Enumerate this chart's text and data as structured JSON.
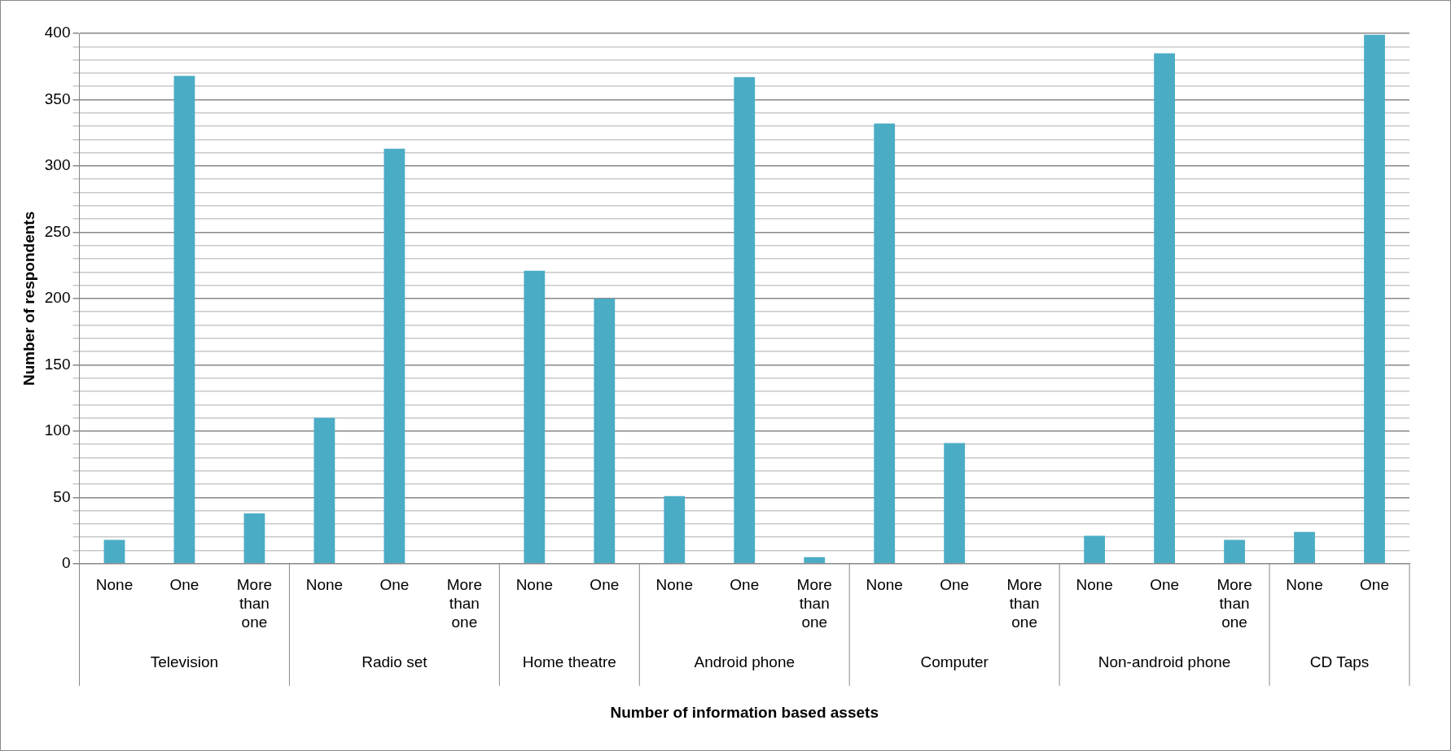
{
  "chart_data": {
    "type": "bar",
    "xlabel": "Number of information based assets",
    "ylabel": "Number of respondents",
    "categories": [
      "None",
      "One",
      "More than one",
      "None",
      "One",
      "More than one",
      "None",
      "One",
      "None",
      "One",
      "More than one",
      "None",
      "One",
      "More than one",
      "None",
      "One",
      "More than one",
      "None",
      "One"
    ],
    "annotations": [
      "Television",
      "Radio set",
      "Home theatre",
      "Android phone",
      "Computer",
      "Non-android phone",
      "CD Taps"
    ],
    "values": [
      18,
      368,
      38,
      110,
      313,
      0,
      221,
      200,
      51,
      367,
      5,
      332,
      91,
      0,
      21,
      385,
      18,
      24,
      399
    ],
    "color": "#4bacc6",
    "ylim": [
      0,
      400
    ],
    "yticks": [
      0,
      {
        "value": 10,
        "label": null
      },
      {
        "value": 20,
        "label": null
      },
      {
        "value": 30,
        "label": null
      },
      {
        "value": 40,
        "label": null
      },
      50,
      {
        "value": 60,
        "label": null
      },
      {
        "value": 70,
        "label": null
      },
      {
        "value": 80,
        "label": null
      },
      {
        "value": 90,
        "label": null
      },
      100,
      {
        "value": 110,
        "label": null
      },
      {
        "value": 120,
        "label": null
      },
      {
        "value": 130,
        "label": null
      },
      {
        "value": 140,
        "label": null
      },
      150,
      {
        "value": 160,
        "label": null
      },
      {
        "value": 170,
        "label": null
      },
      {
        "value": 180,
        "label": null
      },
      {
        "value": 190,
        "label": null
      },
      200,
      {
        "value": 210,
        "label": null
      },
      {
        "value": 220,
        "label": null
      },
      {
        "value": 230,
        "label": null
      },
      {
        "value": 240,
        "label": null
      },
      250,
      {
        "value": 260,
        "label": null
      },
      {
        "value": 270,
        "label": null
      },
      {
        "value": 280,
        "label": null
      },
      {
        "value": 290,
        "label": null
      },
      300,
      {
        "value": 310,
        "label": null
      },
      {
        "value": 320,
        "label": null
      },
      {
        "value": 330,
        "label": null
      },
      {
        "value": 340,
        "label": null
      },
      350,
      {
        "value": 360,
        "label": null
      },
      {
        "value": 370,
        "label": null
      },
      {
        "value": 380,
        "label": null
      },
      {
        "value": 390,
        "label": null
      },
      400
    ],
    "grid": "y",
    "legend": false
  }
}
